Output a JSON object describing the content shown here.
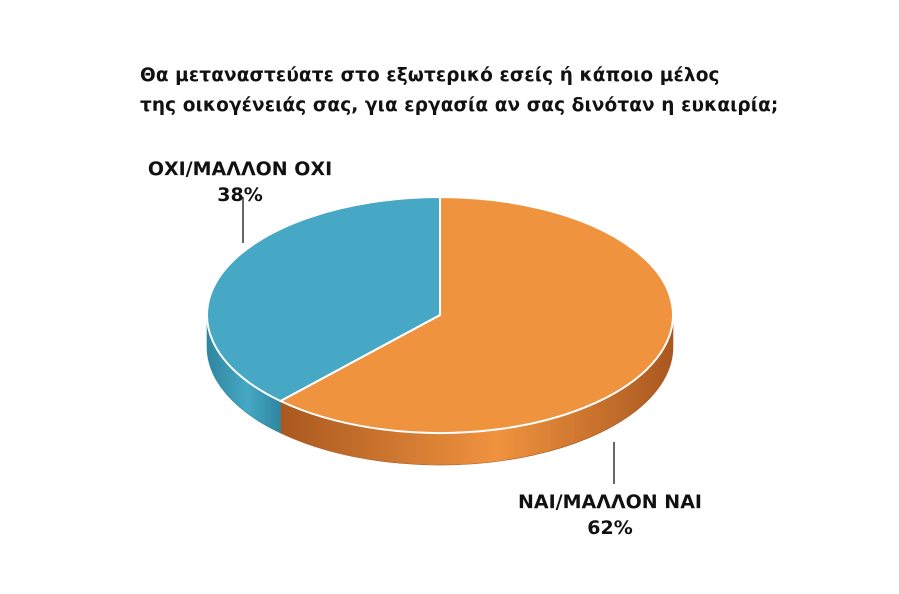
{
  "chart_data": {
    "type": "pie",
    "title": "Θα μεταναστεύατε στο εξωτερικό εσείς ή κάποιο μέλος της οικογένειάς σας, για εργασία αν σας δινόταν η ευκαιρία;",
    "title_lines": [
      "Θα μεταναστεύατε στο εξωτερικό εσείς ή κάποιο μέλος",
      "της οικογένειάς σας, για εργασία αν σας δινόταν η ευκαιρία;"
    ],
    "slices": [
      {
        "label": "ΝΑΙ/ΜΑΛΛΟΝ ΝΑΙ",
        "value": 62,
        "value_label": "62%",
        "color": "#F0933F",
        "side_color": "#A9581F"
      },
      {
        "label": "ΟΧΙ/ΜΑΛΛΟΝ ΟΧΙ",
        "value": 38,
        "value_label": "38%",
        "color": "#46A8C4",
        "side_color": "#2F86A0"
      }
    ],
    "style": "3d-tilted-pie",
    "legend": "none",
    "labels": "outside-with-leader-lines"
  }
}
